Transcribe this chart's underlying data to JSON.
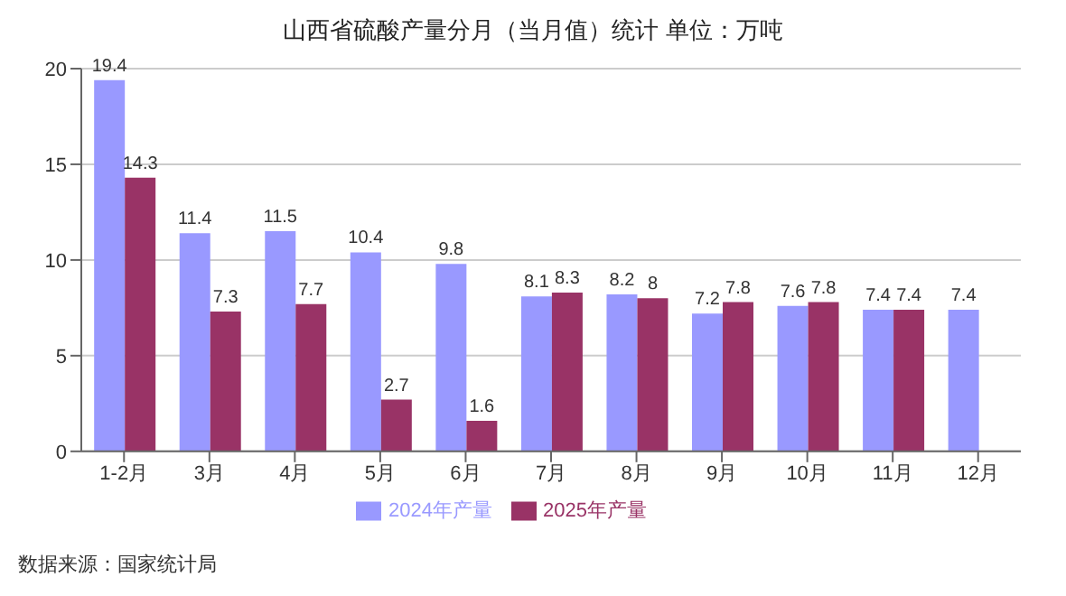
{
  "chart_data": {
    "type": "bar",
    "title": "山西省硫酸产量分月（当月值）统计 单位：万吨",
    "categories": [
      "1-2月",
      "3月",
      "4月",
      "5月",
      "6月",
      "7月",
      "8月",
      "9月",
      "10月",
      "11月",
      "12月"
    ],
    "series": [
      {
        "name": "2024年产量",
        "color": "#9999ff",
        "values": [
          19.4,
          11.4,
          11.5,
          10.4,
          9.8,
          8.1,
          8.2,
          7.2,
          7.6,
          7.4,
          7.4
        ]
      },
      {
        "name": "2025年产量",
        "color": "#993366",
        "values": [
          14.3,
          7.3,
          7.7,
          2.7,
          1.6,
          8.3,
          8,
          7.8,
          7.8,
          7.4,
          null
        ]
      }
    ],
    "ylim": [
      0,
      20
    ],
    "yticks": [
      0,
      5,
      10,
      15,
      20
    ],
    "grid": "y",
    "legend": "bottom",
    "data_labels": true,
    "annotations": [
      "数据来源：国家统计局"
    ]
  }
}
